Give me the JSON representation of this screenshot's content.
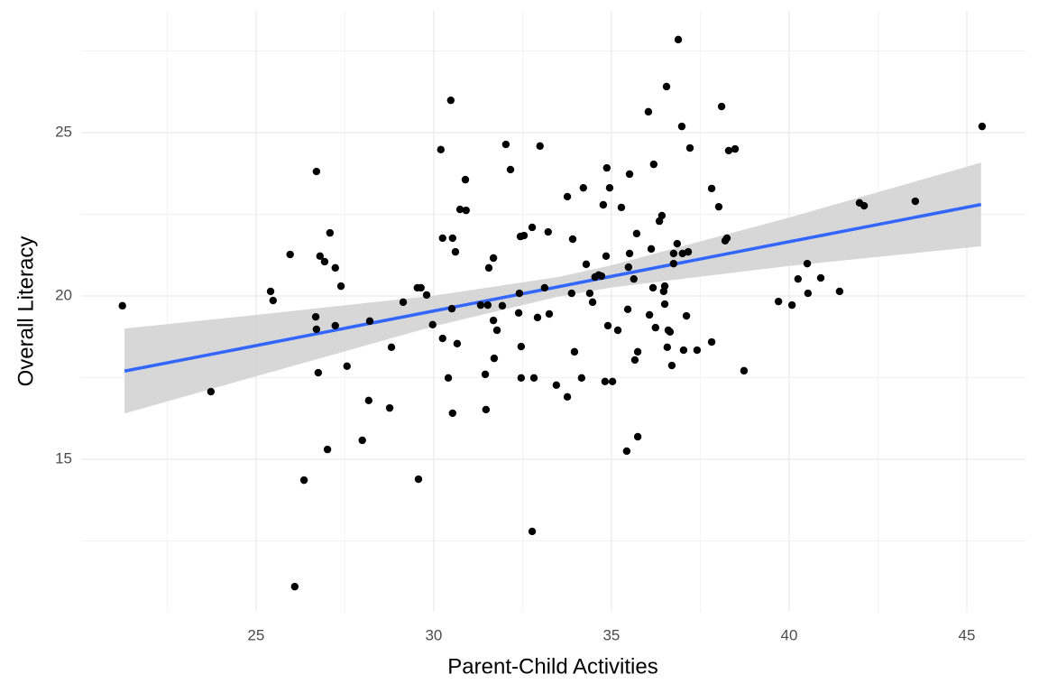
{
  "chart_data": {
    "type": "scatter",
    "x_label": "Parent-Child Activities",
    "y_label": "Overall Literacy",
    "xlim": [
      20.08,
      46.65
    ],
    "ylim": [
      10.33,
      28.73
    ],
    "xticks": [
      25,
      30,
      35,
      40,
      45
    ],
    "yticks": [
      15,
      20,
      25
    ],
    "x_minor_grid": [
      22.5,
      27.5,
      32.5,
      37.5,
      42.5
    ],
    "y_minor_grid": [
      12.5,
      17.5,
      22.5,
      27.5
    ],
    "grid": true,
    "color": "#000000",
    "x": [
      21.24,
      23.73,
      25.41,
      25.48,
      25.96,
      26.09,
      26.35,
      26.7,
      26.68,
      26.7,
      26.75,
      26.8,
      26.93,
      27.08,
      27.01,
      27.23,
      27.23,
      27.39,
      27.56,
      27.99,
      28.17,
      28.2,
      28.76,
      28.81,
      29.14,
      29.54,
      29.64,
      29.57,
      29.8,
      29.97,
      30.2,
      30.25,
      30.25,
      30.41,
      30.48,
      30.51,
      30.53,
      30.53,
      30.61,
      30.66,
      30.74,
      30.89,
      30.91,
      31.32,
      31.45,
      31.47,
      31.52,
      31.55,
      31.68,
      31.68,
      31.7,
      31.78,
      31.93,
      32.03,
      32.16,
      32.39,
      32.41,
      32.44,
      32.46,
      32.46,
      32.54,
      32.77,
      32.77,
      32.82,
      32.92,
      32.99,
      33.12,
      33.22,
      33.25,
      33.45,
      33.76,
      33.76,
      33.88,
      33.91,
      33.96,
      34.16,
      34.21,
      34.29,
      34.39,
      34.47,
      34.54,
      34.64,
      34.72,
      34.77,
      34.82,
      34.85,
      34.87,
      34.9,
      34.95,
      35.03,
      35.18,
      35.28,
      35.43,
      35.46,
      35.48,
      35.51,
      35.51,
      35.63,
      35.66,
      35.71,
      35.74,
      35.74,
      36.04,
      36.07,
      36.12,
      36.17,
      36.19,
      36.24,
      36.35,
      36.42,
      36.47,
      36.5,
      36.5,
      36.55,
      36.57,
      36.6,
      36.65,
      36.7,
      36.75,
      36.75,
      36.85,
      36.88,
      36.98,
      37.0,
      37.03,
      37.11,
      37.16,
      37.21,
      37.41,
      37.82,
      37.82,
      38.02,
      38.1,
      38.2,
      38.25,
      38.3,
      38.48,
      38.73,
      39.7,
      40.08,
      40.25,
      40.51,
      40.53,
      40.89,
      41.42,
      41.98,
      42.11,
      43.55,
      45.43
    ],
    "values": [
      19.7,
      17.07,
      20.14,
      19.86,
      21.27,
      11.1,
      14.36,
      23.81,
      19.36,
      18.98,
      17.65,
      21.22,
      21.05,
      21.93,
      15.3,
      20.86,
      19.09,
      20.3,
      17.85,
      15.58,
      16.8,
      19.23,
      16.57,
      18.43,
      19.81,
      20.25,
      20.25,
      14.39,
      20.03,
      19.12,
      24.48,
      21.77,
      18.7,
      17.49,
      25.99,
      19.61,
      21.77,
      16.41,
      21.35,
      18.54,
      22.65,
      23.56,
      22.62,
      19.72,
      17.6,
      16.52,
      19.72,
      20.86,
      21.16,
      19.25,
      18.09,
      18.95,
      19.7,
      24.64,
      23.87,
      19.48,
      20.08,
      21.82,
      18.45,
      17.49,
      21.85,
      22.1,
      12.79,
      17.49,
      19.34,
      24.59,
      20.25,
      21.96,
      19.45,
      17.27,
      23.04,
      16.91,
      20.08,
      21.74,
      18.29,
      17.49,
      23.31,
      20.97,
      20.08,
      19.81,
      20.58,
      20.64,
      20.61,
      22.79,
      17.38,
      21.22,
      23.92,
      19.09,
      23.31,
      17.38,
      18.95,
      22.71,
      15.25,
      19.59,
      20.88,
      23.73,
      21.3,
      20.52,
      18.04,
      21.91,
      18.29,
      15.69,
      25.64,
      19.42,
      21.44,
      20.25,
      24.03,
      19.03,
      22.29,
      22.46,
      20.14,
      20.3,
      19.75,
      26.41,
      18.43,
      18.95,
      18.9,
      17.87,
      20.99,
      21.3,
      21.6,
      27.85,
      25.19,
      21.3,
      18.34,
      19.39,
      21.35,
      24.53,
      18.34,
      18.59,
      23.29,
      22.73,
      25.8,
      21.69,
      21.77,
      24.45,
      24.5,
      17.71,
      19.83,
      19.72,
      20.52,
      20.99,
      20.08,
      20.55,
      20.14,
      22.85,
      22.76,
      22.9,
      25.19
    ],
    "fit": {
      "color": "#3366ff",
      "band_color": "#d3d3d3",
      "x": [
        21.3,
        25,
        30,
        33.5,
        35,
        40,
        45.4
      ],
      "values": [
        17.7,
        18.48,
        19.54,
        20.28,
        20.6,
        21.66,
        22.8
      ],
      "lower": [
        16.4,
        17.54,
        19.07,
        19.98,
        20.26,
        20.92,
        21.52
      ],
      "upper": [
        19.0,
        19.42,
        20.01,
        20.58,
        20.94,
        22.4,
        24.08
      ]
    }
  }
}
